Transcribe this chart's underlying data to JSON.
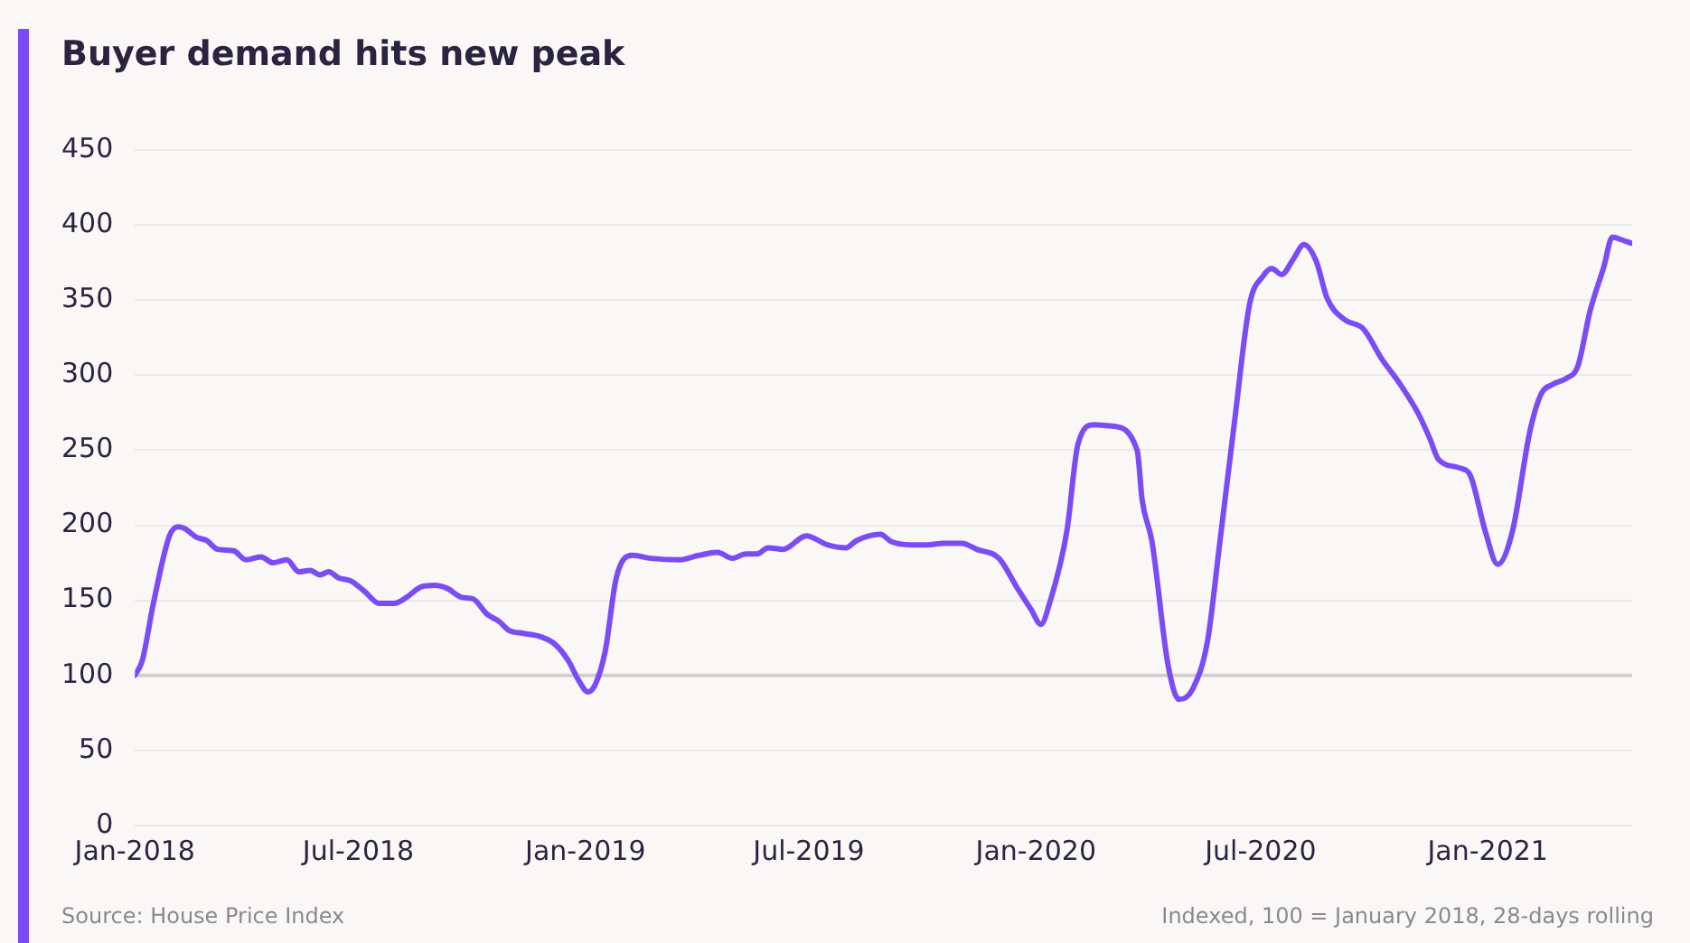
{
  "chart_data": {
    "type": "line",
    "title": "Buyer demand hits new peak",
    "annotations": [
      "Source: House Price Index",
      "Indexed, 100 = January 2018, 28-days rolling"
    ],
    "x": [
      "2018-01-01",
      "2018-01-07",
      "2018-01-16",
      "2018-01-29",
      "2018-02-05",
      "2018-02-10",
      "2018-02-20",
      "2018-02-28",
      "2018-03-09",
      "2018-03-22",
      "2018-04-01",
      "2018-04-13",
      "2018-04-23",
      "2018-05-04",
      "2018-05-14",
      "2018-05-23",
      "2018-05-31",
      "2018-06-07",
      "2018-06-15",
      "2018-06-25",
      "2018-07-06",
      "2018-07-18",
      "2018-07-30",
      "2018-08-09",
      "2018-08-21",
      "2018-09-01",
      "2018-09-11",
      "2018-09-23",
      "2018-10-02",
      "2018-10-13",
      "2018-10-23",
      "2018-10-31",
      "2018-11-12",
      "2018-11-25",
      "2018-12-07",
      "2018-12-18",
      "2018-12-27",
      "2019-01-03",
      "2019-01-09",
      "2019-01-17",
      "2019-01-26",
      "2019-02-08",
      "2019-02-23",
      "2019-03-18",
      "2019-04-03",
      "2019-04-18",
      "2019-04-30",
      "2019-05-11",
      "2019-05-20",
      "2019-05-29",
      "2019-06-10",
      "2019-06-29",
      "2019-07-16",
      "2019-07-31",
      "2019-08-09",
      "2019-08-28",
      "2019-09-06",
      "2019-09-21",
      "2019-10-06",
      "2019-10-18",
      "2019-11-02",
      "2019-11-14",
      "2019-12-02",
      "2019-12-17",
      "2019-12-28",
      "2020-01-05",
      "2020-01-12",
      "2020-01-26",
      "2020-02-04",
      "2020-02-17",
      "2020-03-03",
      "2020-03-23",
      "2020-03-27",
      "2020-04-04",
      "2020-04-17",
      "2020-04-26",
      "2020-05-07",
      "2020-05-19",
      "2020-05-29",
      "2020-06-10",
      "2020-06-22",
      "2020-07-03",
      "2020-07-10",
      "2020-07-18",
      "2020-07-28",
      "2020-08-05",
      "2020-08-15",
      "2020-08-24",
      "2020-09-07",
      "2020-09-22",
      "2020-10-07",
      "2020-10-22",
      "2020-11-06",
      "2020-11-15",
      "2020-11-22",
      "2020-12-10",
      "2020-12-18",
      "2020-12-30",
      "2021-01-09",
      "2021-01-21",
      "2021-02-04",
      "2021-02-13",
      "2021-02-23",
      "2021-03-06",
      "2021-03-15",
      "2021-03-25",
      "2021-04-05",
      "2021-04-12",
      "2021-04-20",
      "2021-04-27"
    ],
    "series": [
      {
        "color": "#7b4cf5",
        "values": [
          100,
          110,
          148,
          193,
          199,
          198,
          192,
          190,
          184,
          183,
          177,
          179,
          175,
          177,
          169,
          170,
          167,
          169,
          165,
          163,
          156,
          148,
          148,
          152,
          159,
          160,
          158,
          152,
          151,
          141,
          136,
          130,
          128,
          126,
          121,
          110,
          96,
          89,
          94,
          116,
          165,
          180,
          178,
          177,
          180,
          182,
          178,
          181,
          181,
          185,
          184,
          193,
          187,
          185,
          190,
          194,
          189,
          187,
          187,
          188,
          188,
          184,
          178,
          158,
          144,
          134,
          148,
          196,
          254,
          267,
          266,
          250,
          217,
          189,
          107,
          84,
          91,
          123,
          189,
          270,
          347,
          366,
          371,
          367,
          378,
          387,
          376,
          351,
          337,
          331,
          311,
          294,
          274,
          258,
          244,
          238,
          233,
          196,
          174,
          196,
          262,
          287,
          294,
          298,
          306,
          343,
          372,
          392,
          390,
          388
        ]
      }
    ],
    "xlim": [
      "2018-01-01",
      "2021-04-28"
    ],
    "xticks": [
      {
        "value": "2018-01-01",
        "label": "Jan-2018"
      },
      {
        "value": "2018-07-01",
        "label": "Jul-2018"
      },
      {
        "value": "2019-01-01",
        "label": "Jan-2019"
      },
      {
        "value": "2019-07-01",
        "label": "Jul-2019"
      },
      {
        "value": "2020-01-01",
        "label": "Jan-2020"
      },
      {
        "value": "2020-07-01",
        "label": "Jul-2020"
      },
      {
        "value": "2021-01-01",
        "label": "Jan-2021"
      }
    ],
    "ylim": [
      0,
      450
    ],
    "yticks": [
      0,
      50,
      100,
      150,
      200,
      250,
      300,
      350,
      400,
      450
    ],
    "grid": "y",
    "legend": false,
    "marker": "none",
    "line_style": "solid",
    "ref_lines": [
      {
        "axis": "y",
        "value": 100,
        "color": "#d0cfcd"
      }
    ]
  }
}
